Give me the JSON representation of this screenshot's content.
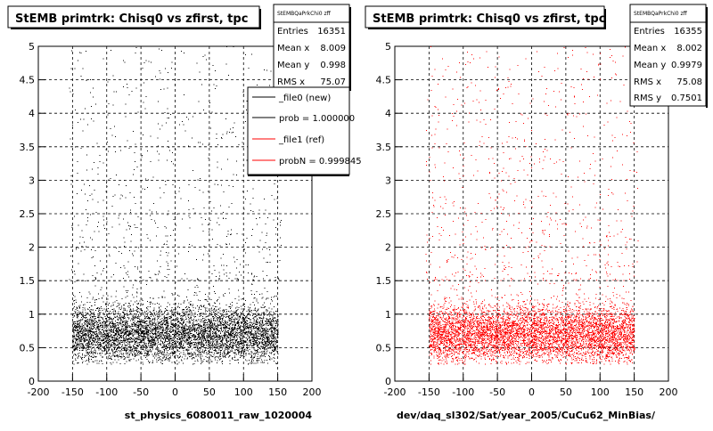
{
  "chart_data": [
    {
      "type": "scatter",
      "title": "StEMB primtrk: Chisq0 vs zfirst, tpc",
      "xlabel": "st_physics_6080011_raw_1020004",
      "ylabel": "",
      "xlim": [
        -200,
        200
      ],
      "ylim": [
        0,
        5
      ],
      "x_ticks": [
        "-200",
        "-150",
        "-100",
        "-50",
        "0",
        "50",
        "100",
        "150",
        "200"
      ],
      "y_ticks": [
        "0",
        "0.5",
        "1",
        "1.5",
        "2",
        "2.5",
        "3",
        "3.5",
        "4",
        "4.5",
        "5"
      ],
      "grid": true,
      "marker_color": "#000000",
      "stats": {
        "name": "StEMBQaPrkChi0 zff",
        "rows": [
          {
            "label": "Entries",
            "value": "16351"
          },
          {
            "label": "Mean x",
            "value": "8.009"
          },
          {
            "label": "Mean y",
            "value": "0.998"
          },
          {
            "label": "RMS x",
            "value": "75.07"
          }
        ]
      },
      "legend": {
        "placement": "right",
        "entries": [
          {
            "label": "_file0 (new)",
            "color": "#000000"
          },
          {
            "label": "prob = 1.000000",
            "color": "#000000"
          },
          {
            "label": "_file1 (ref)",
            "color": "#ff0000"
          },
          {
            "label": "probN = 0.999845",
            "color": "#ff0000"
          }
        ]
      },
      "distribution": {
        "entries": 16351,
        "x_range": [
          -155,
          155
        ],
        "core": {
          "x_range": [
            -150,
            150
          ],
          "y_range": [
            0.25,
            1.5
          ],
          "peak_y": 0.7
        },
        "tail": {
          "y_range": [
            1.5,
            5
          ]
        }
      }
    },
    {
      "type": "scatter",
      "title": "StEMB primtrk: Chisq0 vs zfirst, tpc",
      "xlabel": "dev/daq_sl302/Sat/year_2005/CuCu62_MinBias/",
      "ylabel": "",
      "xlim": [
        -200,
        200
      ],
      "ylim": [
        0,
        5
      ],
      "x_ticks": [
        "-200",
        "-150",
        "-100",
        "-50",
        "0",
        "50",
        "100",
        "150",
        "200"
      ],
      "y_ticks": [
        "0",
        "0.5",
        "1",
        "1.5",
        "2",
        "2.5",
        "3",
        "3.5",
        "4",
        "4.5",
        "5"
      ],
      "grid": true,
      "marker_color": "#ff0000",
      "stats": {
        "name": "StEMBQaPrkChi0 zff",
        "rows": [
          {
            "label": "Entries",
            "value": "16355"
          },
          {
            "label": "Mean x",
            "value": "8.002"
          },
          {
            "label": "Mean y",
            "value": "0.9979"
          },
          {
            "label": "RMS x",
            "value": "75.08"
          },
          {
            "label": "RMS y",
            "value": "0.7501"
          }
        ]
      },
      "distribution": {
        "entries": 16355,
        "x_range": [
          -155,
          155
        ],
        "core": {
          "x_range": [
            -150,
            150
          ],
          "y_range": [
            0.25,
            1.5
          ],
          "peak_y": 0.7
        },
        "tail": {
          "y_range": [
            1.5,
            5
          ]
        }
      }
    }
  ]
}
